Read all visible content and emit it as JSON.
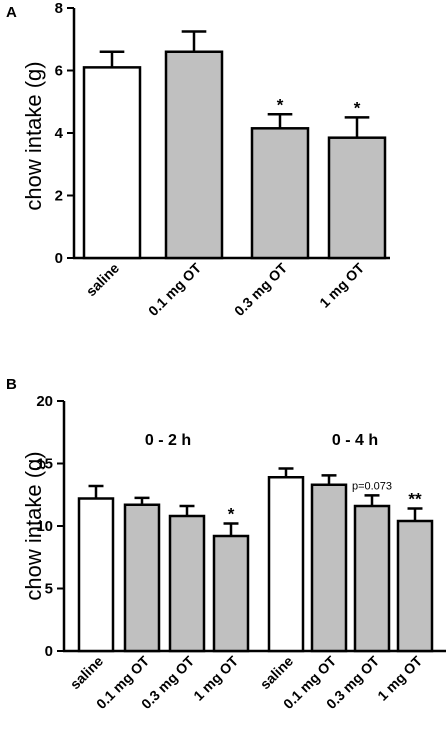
{
  "colors": {
    "saline": "#ffffff",
    "treatment": "#c0c0c0",
    "ink": "#000000"
  },
  "chart_data": [
    {
      "panel": "A",
      "type": "bar",
      "ylabel": "chow intake (g)",
      "ylim": [
        0,
        8
      ],
      "yticks": [
        "0",
        "2",
        "4",
        "6",
        "8"
      ],
      "categories": [
        "saline",
        "0.1 mg OT",
        "0.3 mg OT",
        "1 mg OT"
      ],
      "values": [
        6.1,
        6.6,
        4.15,
        3.85
      ],
      "errors": [
        0.5,
        0.65,
        0.45,
        0.65
      ],
      "annotations": [
        "",
        "",
        "*",
        "*"
      ]
    },
    {
      "panel": "B",
      "type": "bar",
      "ylabel": "chow intake (g)",
      "ylim": [
        0,
        20
      ],
      "yticks": [
        "0",
        "5",
        "10",
        "15",
        "20"
      ],
      "groups": [
        {
          "label": "0 - 2 h",
          "categories": [
            "saline",
            "0.1 mg OT",
            "0.3 mg OT",
            "1 mg OT"
          ],
          "values": [
            12.2,
            11.7,
            10.8,
            9.2
          ],
          "errors": [
            1.0,
            0.55,
            0.8,
            1.0
          ],
          "annotations": [
            "",
            "",
            "",
            "*"
          ]
        },
        {
          "label": "0 - 4 h",
          "categories": [
            "saline",
            "0.1 mg OT",
            "0.3 mg OT",
            "1 mg OT"
          ],
          "values": [
            13.9,
            13.3,
            11.6,
            10.4
          ],
          "errors": [
            0.7,
            0.75,
            0.85,
            1.0
          ],
          "annotations": [
            "",
            "",
            "p=0.073",
            "**"
          ]
        }
      ]
    }
  ]
}
